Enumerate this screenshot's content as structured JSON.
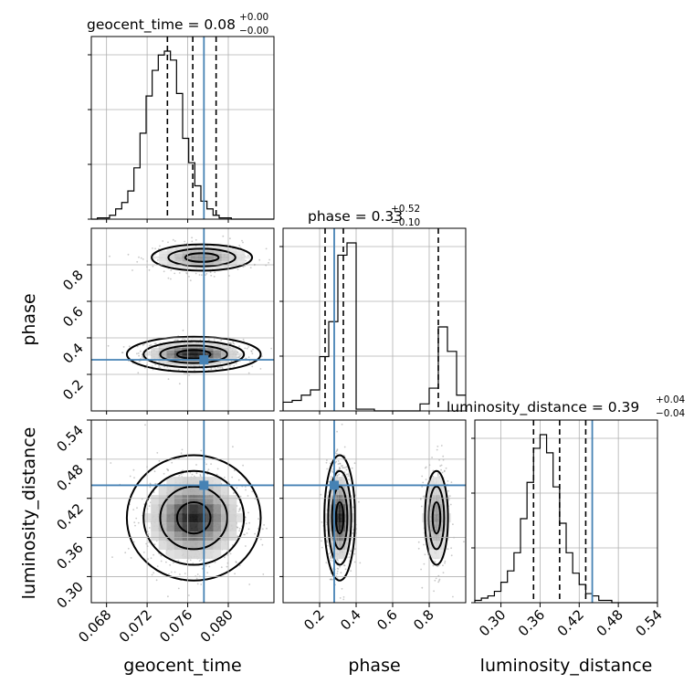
{
  "figure": {
    "parameters": [
      "geocent_time",
      "phase",
      "luminosity_distance"
    ],
    "truth_color": "#4682b4"
  },
  "chart_data": {
    "type": "corner",
    "parameters": [
      {
        "name": "geocent_time",
        "axis_label": "geocent_time",
        "title": {
          "prefix": "geocent_time = 0.08",
          "sup": "+0.00",
          "sub": "−0.00"
        },
        "range": [
          0.0665,
          0.0845
        ],
        "ticks": [
          0.068,
          0.072,
          0.076,
          0.08
        ],
        "tick_labels": [
          "0.068",
          "0.072",
          "0.076",
          "0.080"
        ],
        "quantiles": [
          0.074,
          0.0765,
          0.0788
        ],
        "truth": 0.0776,
        "hist_bin_edges_start": 0.0665,
        "hist_bin_width": 0.0006,
        "hist_counts": [
          0,
          1,
          1,
          3,
          8,
          13,
          22,
          40,
          67,
          96,
          116,
          128,
          131,
          124,
          98,
          63,
          44,
          26,
          14,
          8,
          3,
          1,
          1,
          0,
          0,
          0,
          0,
          0,
          0,
          0
        ]
      },
      {
        "name": "phase",
        "axis_label": "phase",
        "title": {
          "prefix": "phase = 0.33",
          "sup": "+0.52",
          "sub": "−0.10"
        },
        "range": [
          0.0,
          1.0
        ],
        "ticks": [
          0.2,
          0.4,
          0.6,
          0.8
        ],
        "tick_labels": [
          "0.2",
          "0.4",
          "0.6",
          "0.8"
        ],
        "quantiles": [
          0.23,
          0.33,
          0.85
        ],
        "truth": 0.28,
        "hist_bin_edges_start": 0.0,
        "hist_bin_width": 0.05,
        "hist_counts": [
          5,
          6,
          9,
          12,
          31,
          51,
          89,
          96,
          1,
          1,
          0,
          0,
          0,
          0,
          0,
          4,
          13,
          48,
          34,
          9
        ]
      },
      {
        "name": "luminosity_distance",
        "axis_label": "luminosity_distance",
        "title": {
          "prefix": "luminosity_distance = 0.39",
          "sup": "+0.04",
          "sub": "−0.04"
        },
        "range": [
          0.26,
          0.54
        ],
        "ticks": [
          0.3,
          0.36,
          0.42,
          0.48,
          0.54
        ],
        "tick_labels": [
          "0.30",
          "0.36",
          "0.42",
          "0.48",
          "0.54"
        ],
        "quantiles": [
          0.35,
          0.39,
          0.43
        ],
        "truth": 0.44,
        "hist_bin_edges_start": 0.26,
        "hist_bin_width": 0.01,
        "hist_counts": [
          1,
          2,
          3,
          5,
          9,
          14,
          22,
          37,
          53,
          68,
          74,
          66,
          51,
          35,
          22,
          13,
          8,
          4,
          3,
          1,
          1,
          0,
          0,
          0,
          0,
          0,
          0,
          0
        ]
      }
    ],
    "joint_modes": {
      "phase_vs_geocent_time": [
        {
          "geocent_time": 0.0766,
          "phase": 0.31,
          "weight": 1.0
        },
        {
          "geocent_time": 0.0774,
          "phase": 0.84,
          "weight": 0.45
        }
      ],
      "luminosity_distance_vs_geocent_time": [
        {
          "geocent_time": 0.0766,
          "luminosity_distance": 0.39,
          "weight": 1.0
        }
      ],
      "luminosity_distance_vs_phase": [
        {
          "phase": 0.31,
          "luminosity_distance": 0.39,
          "weight": 1.0
        },
        {
          "phase": 0.84,
          "luminosity_distance": 0.39,
          "weight": 0.45
        }
      ]
    }
  }
}
